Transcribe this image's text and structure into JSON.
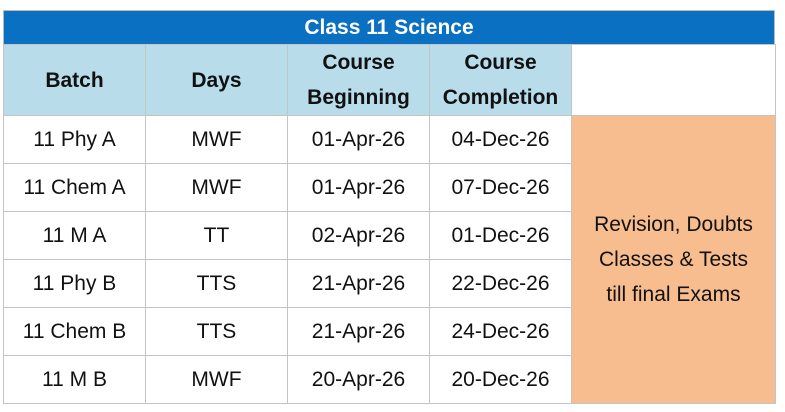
{
  "table": {
    "title": "Class 11 Science",
    "headers": {
      "batch": "Batch",
      "days": "Days",
      "course_beginning": {
        "line1": "Course",
        "line2": "Beginning"
      },
      "course_completion": {
        "line1": "Course",
        "line2": "Completion"
      },
      "blank": ""
    },
    "rows": [
      {
        "batch": "11 Phy A",
        "days": "MWF",
        "beginning": "01-Apr-26",
        "completion": "04-Dec-26"
      },
      {
        "batch": "11 Chem A",
        "days": "MWF",
        "beginning": "01-Apr-26",
        "completion": "07-Dec-26"
      },
      {
        "batch": "11 M A",
        "days": "TT",
        "beginning": "02-Apr-26",
        "completion": "01-Dec-26"
      },
      {
        "batch": "11 Phy B",
        "days": "TTS",
        "beginning": "21-Apr-26",
        "completion": "22-Dec-26"
      },
      {
        "batch": "11 Chem B",
        "days": "TTS",
        "beginning": "21-Apr-26",
        "completion": "24-Dec-26"
      },
      {
        "batch": "11 M B",
        "days": "MWF",
        "beginning": "20-Apr-26",
        "completion": "20-Dec-26"
      }
    ],
    "note": {
      "line1": "Revision, Doubts",
      "line2": "Classes & Tests",
      "line3": "till final Exams"
    },
    "colors": {
      "title_bg": "#0a70c2",
      "header_bg": "#b8dcea",
      "note_bg": "#f7bd8e"
    }
  }
}
